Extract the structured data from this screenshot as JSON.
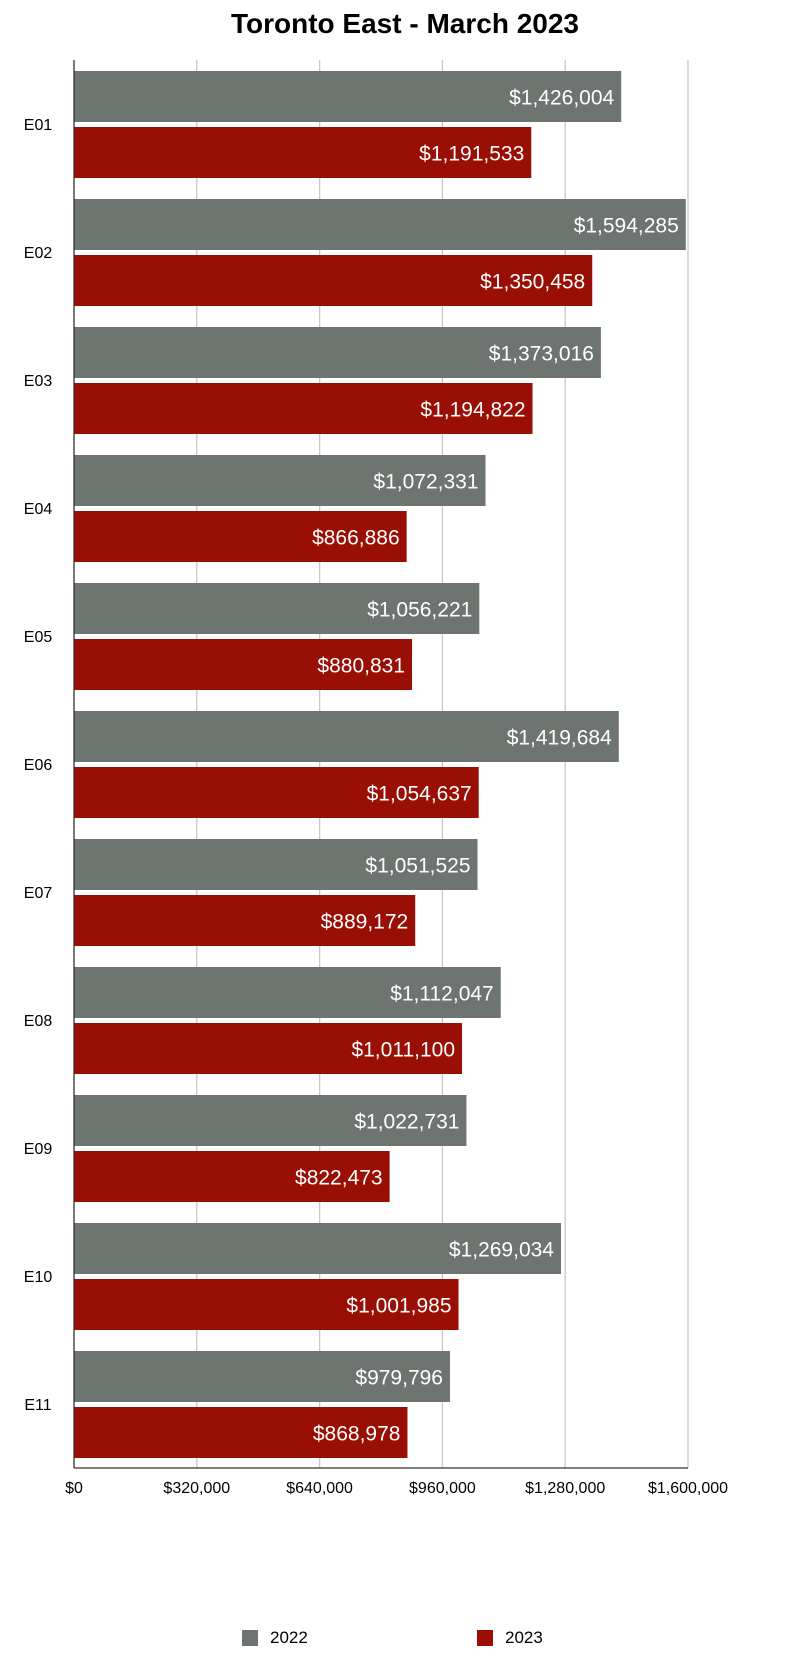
{
  "chart_data": {
    "type": "bar",
    "orientation": "horizontal",
    "title": "Toronto East - March 2023",
    "xlabel": "",
    "ylabel": "",
    "categories": [
      "E01",
      "E02",
      "E03",
      "E04",
      "E05",
      "E06",
      "E07",
      "E08",
      "E09",
      "E10",
      "E11"
    ],
    "series": [
      {
        "name": "2022",
        "color": "#6e7571",
        "values": [
          1426004,
          1594285,
          1373016,
          1072331,
          1056221,
          1419684,
          1051525,
          1112047,
          1022731,
          1269034,
          979796
        ],
        "labels": [
          "$1,426,004",
          "$1,594,285",
          "$1,373,016",
          "$1,072,331",
          "$1,056,221",
          "$1,419,684",
          "$1,051,525",
          "$1,112,047",
          "$1,022,731",
          "$1,269,034",
          "$979,796"
        ]
      },
      {
        "name": "2023",
        "color": "#9a0f05",
        "values": [
          1191533,
          1350458,
          1194822,
          866886,
          880831,
          1054637,
          889172,
          1011100,
          822473,
          1001985,
          868978
        ],
        "labels": [
          "$1,191,533",
          "$1,350,458",
          "$1,194,822",
          "$866,886",
          "$880,831",
          "$1,054,637",
          "$889,172",
          "$1,011,100",
          "$822,473",
          "$1,001,985",
          "$868,978"
        ]
      }
    ],
    "xlim": [
      0,
      1600000
    ],
    "xticks": [
      0,
      320000,
      640000,
      960000,
      1280000,
      1600000
    ],
    "xtick_labels": [
      "$0",
      "$320,000",
      "$640,000",
      "$960,000",
      "$1,280,000",
      "$1,600,000"
    ],
    "grid": true,
    "legend_position": "bottom"
  }
}
